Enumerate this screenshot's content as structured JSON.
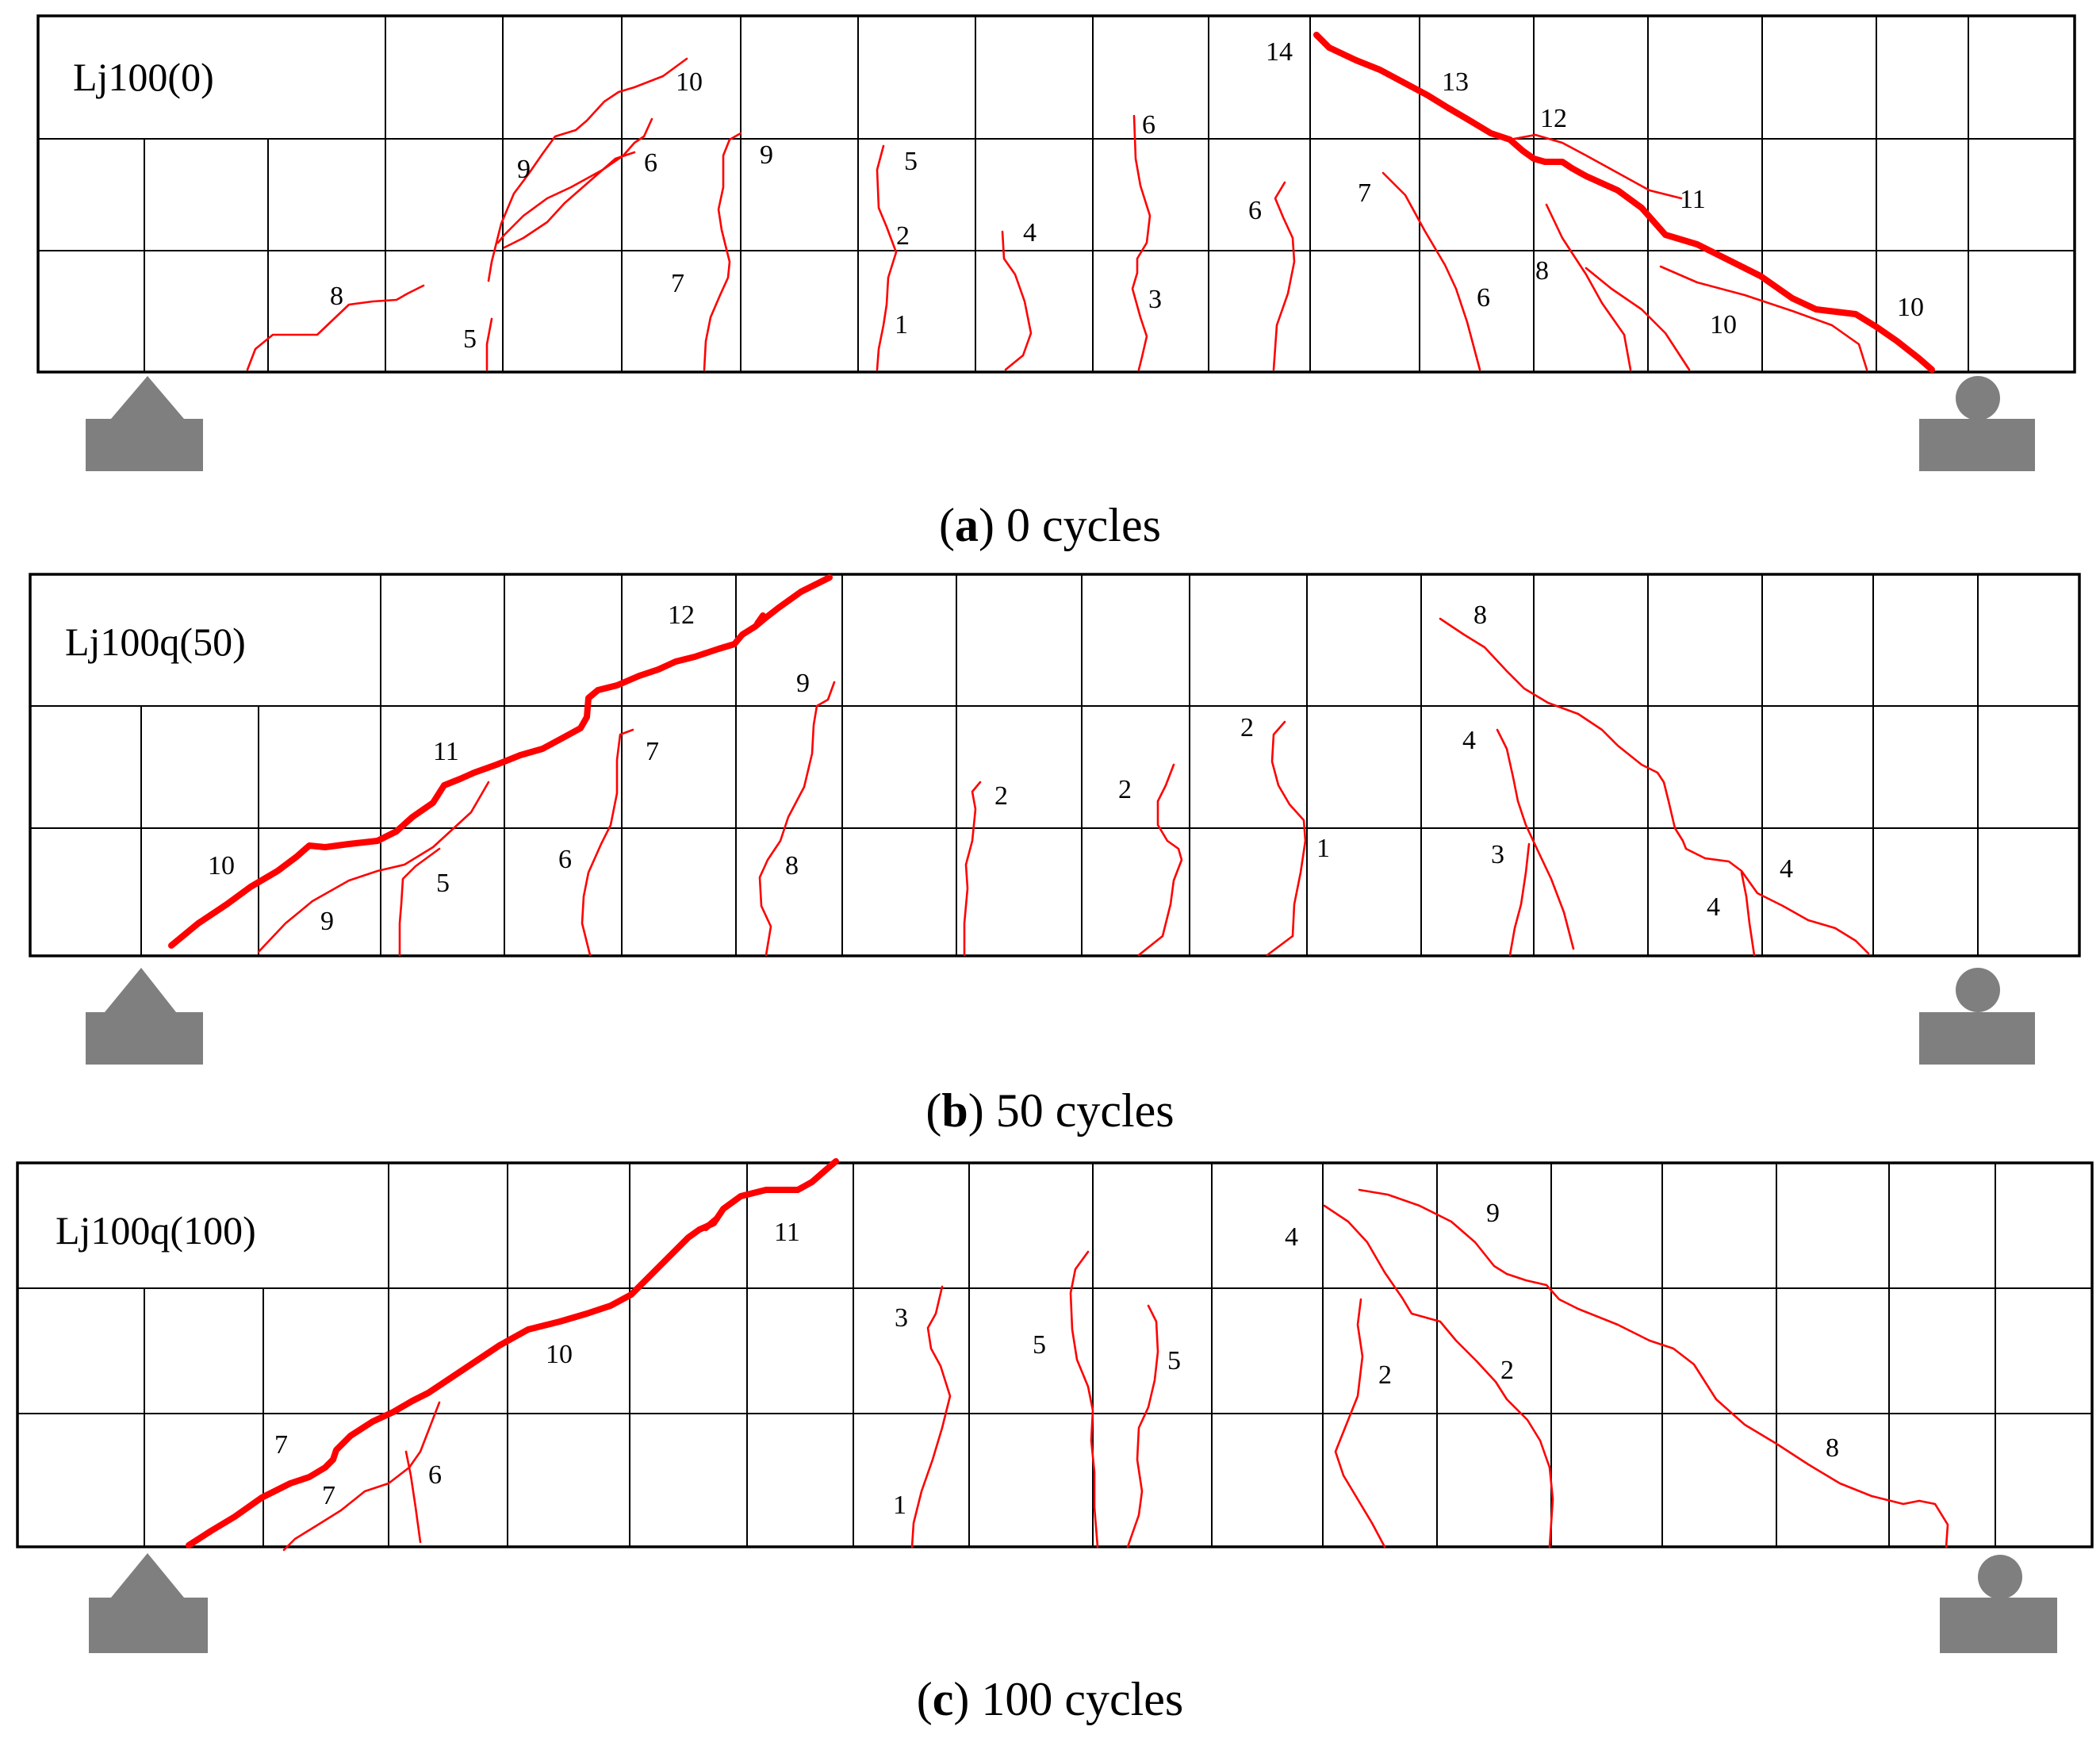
{
  "panels": [
    {
      "id": "a",
      "beam_label": "Lj100(0)",
      "caption_letter": "a",
      "caption_text": ") 0 cycles",
      "crack_labels": [
        "14",
        "13",
        "12",
        "11",
        "10",
        "10",
        "10",
        "9",
        "9",
        "8",
        "8",
        "7",
        "7",
        "6",
        "6",
        "6",
        "6",
        "5",
        "5",
        "4",
        "3",
        "2",
        "1"
      ]
    },
    {
      "id": "b",
      "beam_label": "Lj100q(50)",
      "caption_letter": "b",
      "caption_text": ") 50 cycles",
      "crack_labels": [
        "12",
        "11",
        "10",
        "9",
        "9",
        "8",
        "8",
        "7",
        "6",
        "5",
        "4",
        "4",
        "4",
        "3",
        "2",
        "2",
        "2",
        "1"
      ]
    },
    {
      "id": "c",
      "beam_label": "Lj100q(100)",
      "caption_letter": "c",
      "caption_text": ") 100 cycles",
      "crack_labels": [
        "11",
        "10",
        "9",
        "8",
        "7",
        "7",
        "6",
        "5",
        "5",
        "4",
        "3",
        "2",
        "2",
        "1"
      ]
    }
  ],
  "colors": {
    "crack": "#ff0000",
    "grid": "#000000",
    "support": "#7f7f7f"
  }
}
